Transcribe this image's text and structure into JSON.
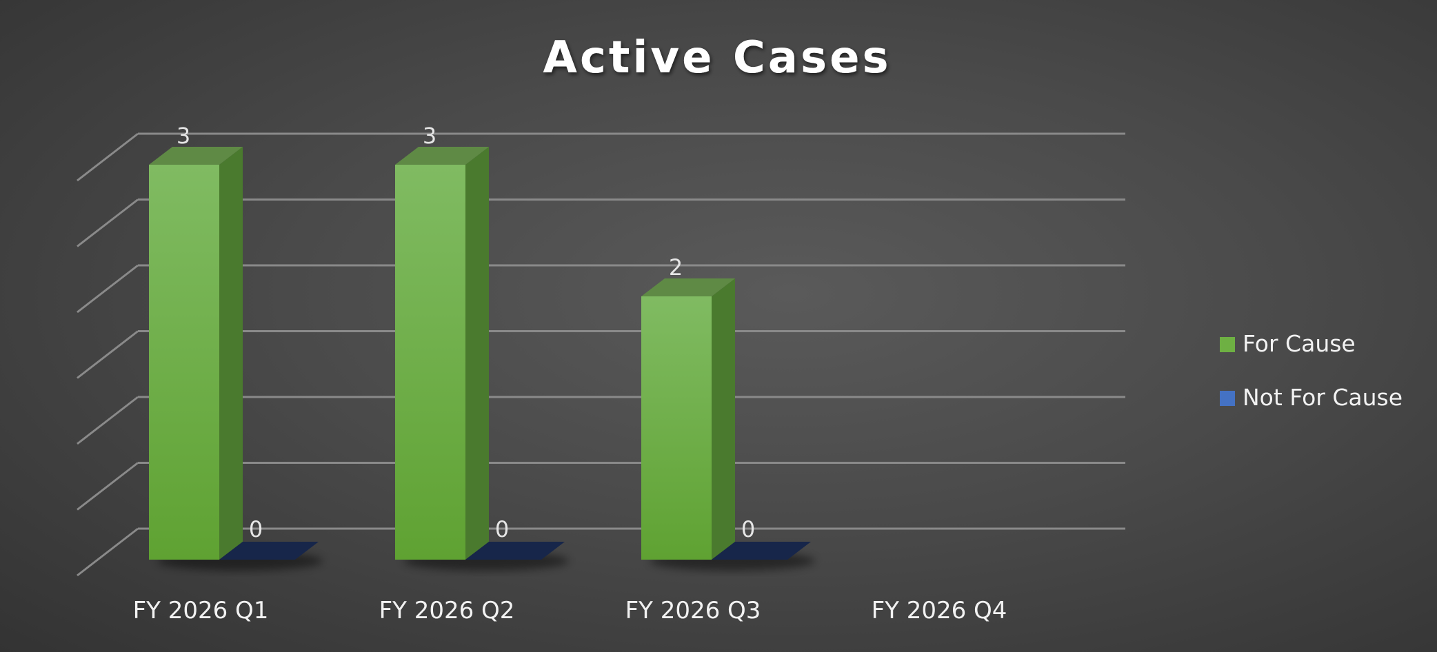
{
  "chart_data": {
    "type": "bar",
    "title": "Active Cases",
    "categories": [
      "FY 2026 Q1",
      "FY 2026 Q2",
      "FY 2026 Q3",
      "FY 2026 Q4"
    ],
    "series": [
      {
        "name": "For Cause",
        "values": [
          3,
          3,
          2,
          null
        ],
        "color": "#6eb043"
      },
      {
        "name": "Not For Cause",
        "values": [
          0,
          0,
          0,
          null
        ],
        "color": "#4472c4"
      }
    ],
    "ylim": [
      0,
      3
    ],
    "grid": true,
    "legend": "right",
    "style": "3d-column"
  }
}
